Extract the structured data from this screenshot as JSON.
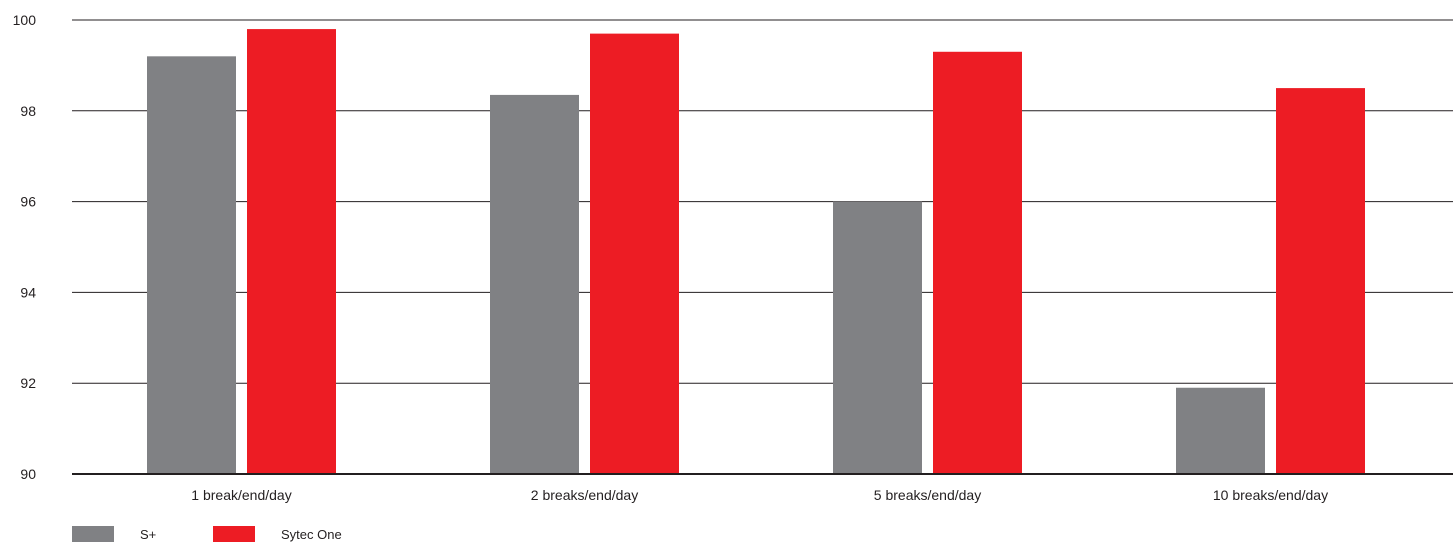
{
  "chart_data": {
    "type": "bar",
    "categories": [
      "1 break/end/day",
      "2 breaks/end/day",
      "5 breaks/end/day",
      "10 breaks/end/day"
    ],
    "series": [
      {
        "name": "S+",
        "color": "#808184",
        "values": [
          99.2,
          98.35,
          96.0,
          91.9
        ]
      },
      {
        "name": "Sytec One",
        "color": "#ed1c24",
        "values": [
          99.8,
          99.7,
          99.3,
          98.5
        ]
      }
    ],
    "title": "",
    "xlabel": "",
    "ylabel": "",
    "ylim": [
      90,
      100
    ],
    "yticks": [
      "90",
      "92",
      "94",
      "96",
      "98",
      "100"
    ],
    "grid": true,
    "legend_position": "bottom-left"
  }
}
